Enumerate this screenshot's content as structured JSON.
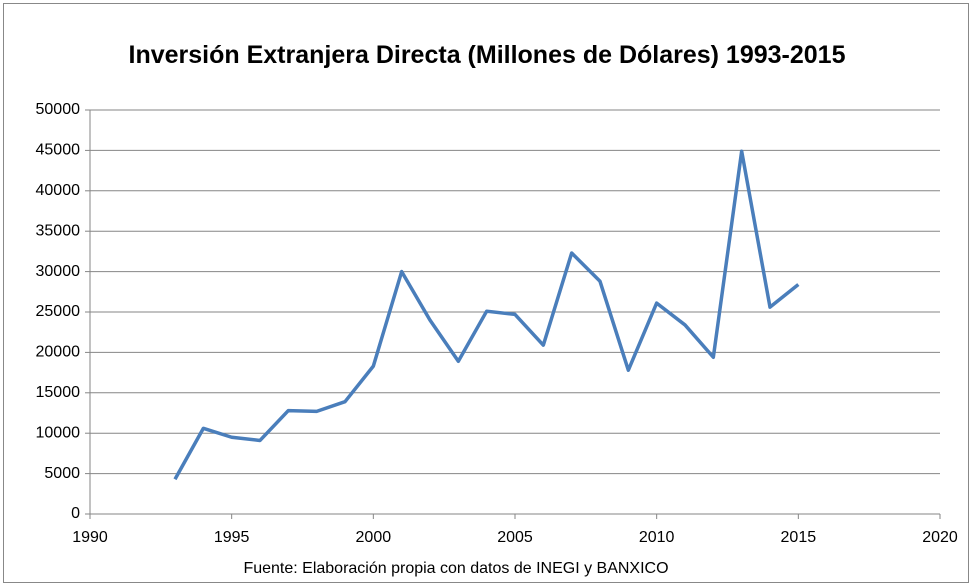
{
  "chart_data": {
    "type": "line",
    "title": "Inversión Extranjera Directa (Millones de Dólares) 1993-2015",
    "caption": "Fuente: Elaboración propia con datos de INEGI y BANXICO",
    "x": [
      1993,
      1994,
      1995,
      1996,
      1997,
      1998,
      1999,
      2000,
      2001,
      2002,
      2003,
      2004,
      2005,
      2006,
      2007,
      2008,
      2009,
      2010,
      2011,
      2012,
      2013,
      2014,
      2015
    ],
    "values": [
      4300,
      10600,
      9500,
      9100,
      12800,
      12700,
      13900,
      18300,
      30000,
      24000,
      18900,
      25100,
      24700,
      20900,
      32300,
      28800,
      17800,
      26100,
      23400,
      19400,
      44900,
      25600,
      28400
    ],
    "color": "#4a7ebb",
    "xlim": [
      1990,
      2020
    ],
    "xticks": [
      1990,
      1995,
      2000,
      2005,
      2010,
      2015,
      2020
    ],
    "ylim": [
      0,
      50000
    ],
    "yticks": [
      0,
      5000,
      10000,
      15000,
      20000,
      25000,
      30000,
      35000,
      40000,
      45000,
      50000
    ],
    "grid": true
  }
}
